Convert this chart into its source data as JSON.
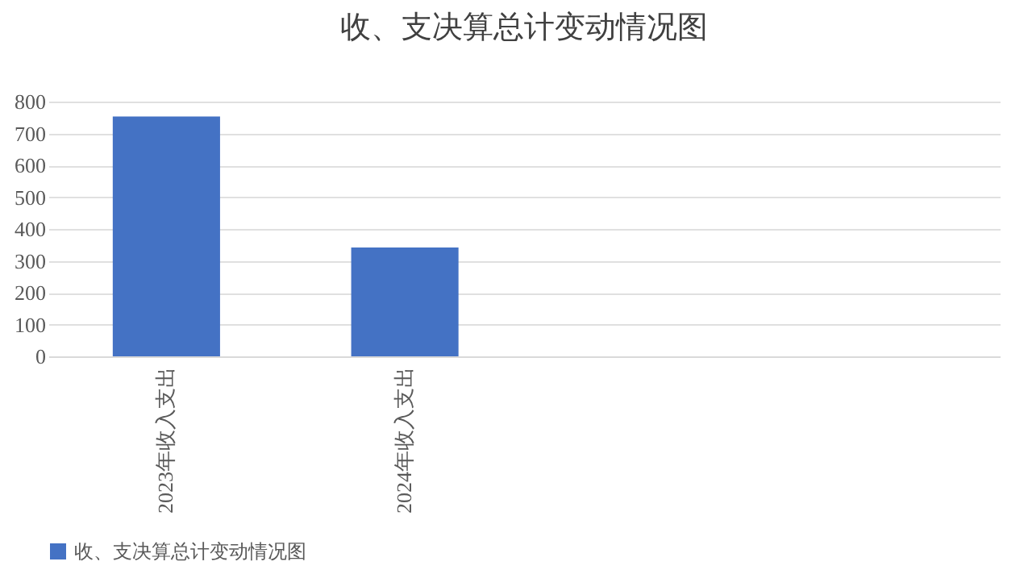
{
  "chart_data": {
    "type": "bar",
    "title": "收、支决算总计变动情况图",
    "categories": [
      "2023年收入支出",
      "2024年收入支出",
      null,
      null
    ],
    "series": [
      {
        "name": "收、支决算总计变动情况图",
        "color": "#4472c4",
        "values": [
          753,
          342,
          null,
          null
        ]
      }
    ],
    "ylim": [
      0,
      800
    ],
    "yticks": [
      0,
      100,
      200,
      300,
      400,
      500,
      600,
      700,
      800
    ],
    "grid": "y",
    "legend": "bottom"
  }
}
